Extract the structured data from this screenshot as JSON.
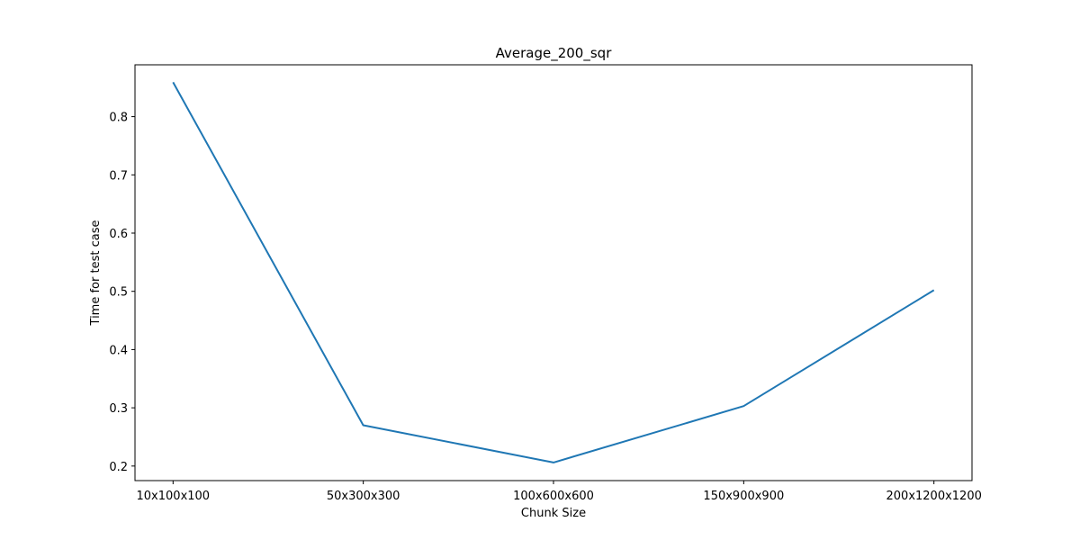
{
  "chart_data": {
    "type": "line",
    "title": "Average_200_sqr",
    "xlabel": "Chunk Size",
    "ylabel": "Time for test case",
    "categories": [
      "10x100x100",
      "50x300x300",
      "100x600x600",
      "150x900x900",
      "200x1200x1200"
    ],
    "series": [
      {
        "values": [
          0.859,
          0.27,
          0.206,
          0.303,
          0.502
        ],
        "color": "#1f77b4"
      }
    ],
    "ylim": [
      0.175,
      0.889
    ],
    "yticks": [
      0.2,
      0.3,
      0.4,
      0.5,
      0.6,
      0.7,
      0.8
    ],
    "grid": false
  }
}
